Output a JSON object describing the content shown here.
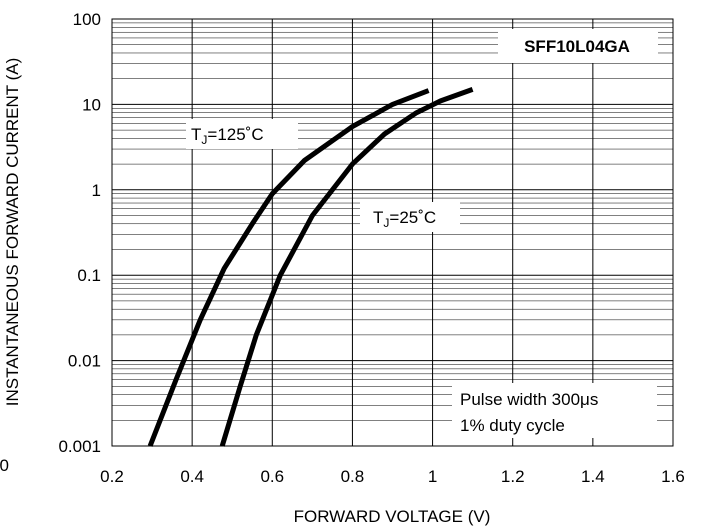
{
  "chart_data": {
    "type": "line",
    "title": "SFF10L04GA",
    "xlabel": "FORWARD VOLTAGE (V)",
    "ylabel": "INSTANTANEOUS FORWARD CURRENT (A)",
    "xlim": [
      0.2,
      1.6
    ],
    "ylim": [
      0.001,
      100
    ],
    "y_scale": "log",
    "grid": true,
    "x_ticks": [
      "0.2",
      "0.4",
      "0.6",
      "0.8",
      "1",
      "1.2",
      "1.4",
      "1.6"
    ],
    "y_ticks": [
      "0.001",
      "0.01",
      "0.1",
      "1",
      "10",
      "100"
    ],
    "corner_label": "0",
    "series": [
      {
        "label_prefix": "T",
        "label_sub": "J",
        "label_suffix": "=125˚C",
        "x": [
          0.295,
          0.36,
          0.42,
          0.48,
          0.55,
          0.6,
          0.68,
          0.8,
          0.9,
          0.99
        ],
        "y": [
          0.001,
          0.006,
          0.03,
          0.12,
          0.4,
          0.9,
          2.2,
          5.5,
          10.0,
          14.5
        ]
      },
      {
        "label_prefix": "T",
        "label_sub": "J",
        "label_suffix": "=25˚C",
        "x": [
          0.475,
          0.52,
          0.56,
          0.62,
          0.7,
          0.8,
          0.88,
          0.96,
          1.02,
          1.1
        ],
        "y": [
          0.001,
          0.005,
          0.02,
          0.1,
          0.5,
          2.0,
          4.5,
          8.0,
          11.0,
          15.0
        ]
      }
    ],
    "annotations": [
      "Pulse width 300μs",
      "1% duty cycle"
    ],
    "colors": {
      "line": "#000000",
      "grid": "#000000",
      "background": "#ffffff"
    }
  }
}
